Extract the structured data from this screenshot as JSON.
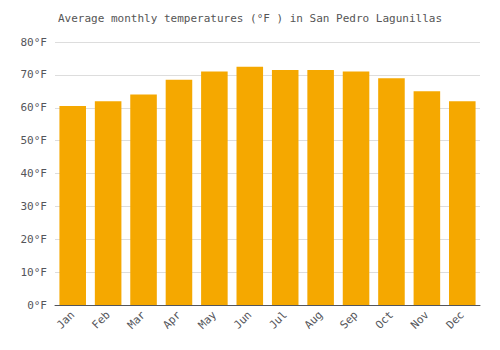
{
  "chart_data": {
    "type": "bar",
    "title": "Average monthly temperatures (°F ) in San Pedro Lagunillas",
    "categories": [
      "Jan",
      "Feb",
      "Mar",
      "Apr",
      "May",
      "Jun",
      "Jul",
      "Aug",
      "Sep",
      "Oct",
      "Nov",
      "Dec"
    ],
    "values": [
      60.5,
      62,
      64,
      68.5,
      71,
      72.5,
      71.5,
      71.5,
      71,
      69,
      65,
      62
    ],
    "color": "#F5A800",
    "ylim": [
      0,
      80
    ],
    "yticks": [
      {
        "value": 0,
        "label": "0°F"
      },
      {
        "value": 10,
        "label": "10°F"
      },
      {
        "value": 20,
        "label": "20°F"
      },
      {
        "value": 30,
        "label": "30°F"
      },
      {
        "value": 40,
        "label": "40°F"
      },
      {
        "value": 50,
        "label": "50°F"
      },
      {
        "value": 60,
        "label": "60°F"
      },
      {
        "value": 70,
        "label": "70°F"
      },
      {
        "value": 80,
        "label": "80°F"
      }
    ],
    "grid": true
  }
}
